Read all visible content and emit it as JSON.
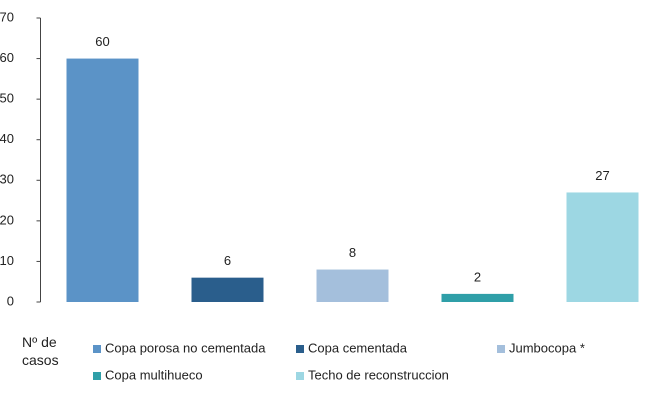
{
  "chart_data": {
    "type": "bar",
    "ylabel": "Nº de casos",
    "categories": [
      "Copa porosa no cementada",
      "Copa cementada",
      "Jumbocopa *",
      "Copa multihueco",
      "Techo de reconstruccion"
    ],
    "values": [
      60,
      6,
      8,
      2,
      27
    ],
    "colors": [
      "#5b93c7",
      "#2a5e8c",
      "#a4bfdc",
      "#2f9fa8",
      "#9dd7e3"
    ],
    "ylim": [
      0,
      70
    ],
    "yticks": [
      0,
      10,
      20,
      30,
      40,
      50,
      60,
      70
    ],
    "grid": false
  }
}
